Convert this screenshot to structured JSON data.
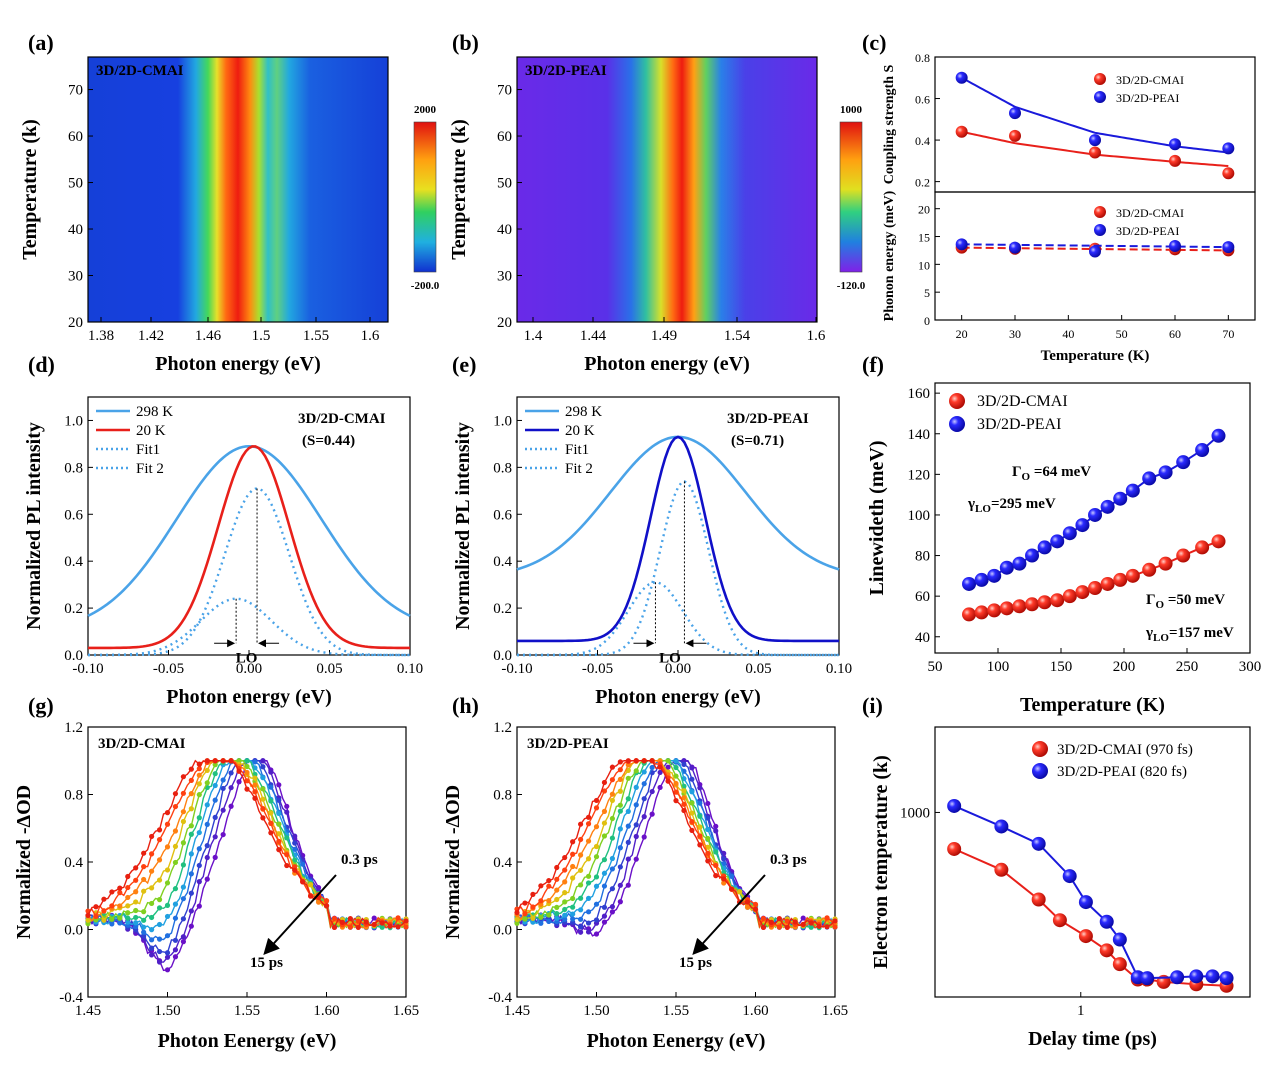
{
  "panel_labels": [
    "(a)",
    "(b)",
    "(c)",
    "(d)",
    "(e)",
    "(f)",
    "(g)",
    "(h)",
    "(i)"
  ],
  "colors": {
    "red": "#e8201a",
    "blue": "#1a1adb",
    "sky": "#4aa3e8",
    "darkblue": "#1010c8"
  },
  "chart_data": [
    {
      "id": "a",
      "type": "heatmap",
      "label_in_plot": "3D/2D-CMAI",
      "xlabel": "Photon energy (eV)",
      "ylabel": "Temperature (k)",
      "xticks": [
        "1.38",
        "1.42",
        "1.46",
        "1.5",
        "1.55",
        "1.6"
      ],
      "yticks": [
        "20",
        "30",
        "40",
        "50",
        "60",
        "70"
      ],
      "colorbar": {
        "max": "2000",
        "min": "-200.0"
      },
      "peak_energy_eV": 1.49
    },
    {
      "id": "b",
      "type": "heatmap",
      "label_in_plot": "3D/2D-PEAI",
      "xlabel": "Photon energy (eV)",
      "ylabel": "Temperature (k)",
      "xticks": [
        "1.4",
        "1.44",
        "1.49",
        "1.54",
        "1.6"
      ],
      "yticks": [
        "20",
        "30",
        "40",
        "50",
        "60",
        "70"
      ],
      "colorbar": {
        "max": "1000",
        "min": "-120.0"
      },
      "peak_energy_eV": 1.495
    },
    {
      "id": "c_top",
      "type": "scatter",
      "ylabel": "Coupling strength S",
      "yticks": [
        "0.2",
        "0.4",
        "0.6",
        "0.8"
      ],
      "ylim": [
        0.15,
        0.8
      ],
      "x": [
        20,
        30,
        45,
        60,
        70
      ],
      "series": [
        {
          "name": "3D/2D-CMAI",
          "values": [
            0.44,
            0.42,
            0.34,
            0.3,
            0.24
          ],
          "fit": [
            0.44,
            0.385,
            0.33,
            0.295,
            0.275
          ]
        },
        {
          "name": "3D/2D-PEAI",
          "values": [
            0.7,
            0.53,
            0.4,
            0.38,
            0.36
          ],
          "fit": [
            0.7,
            0.56,
            0.435,
            0.37,
            0.34
          ]
        }
      ]
    },
    {
      "id": "c_bottom",
      "type": "scatter",
      "ylabel": "Phonon energy (meV)",
      "xlabel": "Temperature (K)",
      "xticks": [
        "20",
        "30",
        "40",
        "50",
        "60",
        "70"
      ],
      "yticks": [
        "0",
        "5",
        "10",
        "15",
        "20"
      ],
      "ylim": [
        0,
        23
      ],
      "xlim": [
        15,
        75
      ],
      "x": [
        20,
        30,
        45,
        60,
        70
      ],
      "series": [
        {
          "name": "3D/2D-CMAI",
          "values": [
            13,
            12.8,
            12.8,
            12.7,
            12.5
          ]
        },
        {
          "name": "3D/2D-PEAI",
          "values": [
            13.6,
            13,
            12.3,
            13.3,
            13.1
          ]
        }
      ]
    },
    {
      "id": "d",
      "type": "line",
      "label_in_plot": "3D/2D-CMAI",
      "annotation": "(S=0.44)",
      "xlabel": "Photon energy (eV)",
      "ylabel": "Normalized PL intensity",
      "xticks": [
        "-0.10",
        "-0.05",
        "0.00",
        "0.05",
        "0.10"
      ],
      "yticks": [
        "0.0",
        "0.2",
        "0.4",
        "0.6",
        "0.8",
        "1.0"
      ],
      "xlim": [
        -0.1,
        0.1
      ],
      "ylim": [
        0,
        1.1
      ],
      "lo_label": "LO",
      "legend": [
        "298 K",
        "20 K",
        "Fit1",
        "Fit 2"
      ],
      "curves": {
        "k298": {
          "center": 0.0,
          "sigma": 0.045,
          "amp": 0.79,
          "base": 0.1
        },
        "k20": {
          "center": 0.003,
          "sigma": 0.022,
          "amp": 0.86,
          "base": 0.03
        },
        "fit1": {
          "center": 0.005,
          "sigma": 0.02,
          "amp": 0.71,
          "base": 0.0
        },
        "fit2": {
          "center": -0.008,
          "sigma": 0.022,
          "amp": 0.24,
          "base": 0.0
        }
      }
    },
    {
      "id": "e",
      "type": "line",
      "label_in_plot": "3D/2D-PEAI",
      "annotation": "(S=0.71)",
      "xlabel": "Photon energy (eV)",
      "ylabel": "Normalized PL intensity",
      "xticks": [
        "-0.10",
        "-0.05",
        "0.00",
        "0.05",
        "0.10"
      ],
      "yticks": [
        "0.0",
        "0.2",
        "0.4",
        "0.6",
        "0.8",
        "1.0"
      ],
      "xlim": [
        -0.1,
        0.1
      ],
      "ylim": [
        0,
        1.1
      ],
      "lo_label": "LO",
      "legend": [
        "298 K",
        "20 K",
        "Fit1",
        "Fit 2"
      ],
      "curves": {
        "k298": {
          "center": 0.0,
          "sigma": 0.042,
          "amp": 0.6,
          "base": 0.33
        },
        "k20": {
          "center": 0.0,
          "sigma": 0.017,
          "amp": 0.87,
          "base": 0.06
        },
        "fit1": {
          "center": 0.004,
          "sigma": 0.015,
          "amp": 0.74,
          "base": 0.0
        },
        "fit2": {
          "center": -0.014,
          "sigma": 0.017,
          "amp": 0.31,
          "base": 0.0
        }
      }
    },
    {
      "id": "f",
      "type": "scatter",
      "xlabel": "Temperature (K)",
      "ylabel": "Linewideth (meV)",
      "xticks": [
        "50",
        "100",
        "150",
        "200",
        "250",
        "300"
      ],
      "yticks": [
        "40",
        "60",
        "80",
        "100",
        "120",
        "140",
        "160"
      ],
      "xlim": [
        50,
        300
      ],
      "ylim": [
        32,
        165
      ],
      "annotations": [
        "Γ",
        "O",
        " =64 meV",
        "γ",
        "LO",
        "=295 meV",
        "Γ",
        "O",
        " =50 meV",
        "γ",
        "LO",
        "=157 meV"
      ],
      "x": [
        77,
        87,
        97,
        107,
        117,
        127,
        137,
        147,
        157,
        167,
        177,
        187,
        197,
        207,
        220,
        233,
        247,
        262,
        275
      ],
      "series": [
        {
          "name": "3D/2D-CMAI",
          "values": [
            51,
            52,
            53,
            54,
            55,
            56,
            57,
            58,
            60,
            62,
            64,
            66,
            68,
            70,
            73,
            76,
            80,
            84,
            87
          ]
        },
        {
          "name": "3D/2D-PEAI",
          "values": [
            66,
            68,
            70,
            74,
            76,
            80,
            84,
            87,
            91,
            95,
            100,
            104,
            108,
            112,
            118,
            121,
            126,
            132,
            139
          ]
        }
      ]
    },
    {
      "id": "g",
      "type": "line",
      "label_in_plot": "3D/2D-CMAI",
      "xlabel": "Photon Eenergy (eV)",
      "ylabel": "Normalized -ΔOD",
      "xticks": [
        "1.45",
        "1.50",
        "1.55",
        "1.60",
        "1.65"
      ],
      "yticks": [
        "-0.4",
        "0.0",
        "0.4",
        "0.8",
        "1.2"
      ],
      "xlim": [
        1.45,
        1.65
      ],
      "ylim": [
        -0.4,
        1.2
      ],
      "time_start": "0.3 ps",
      "time_end": "15 ps"
    },
    {
      "id": "h",
      "type": "line",
      "label_in_plot": "3D/2D-PEAI",
      "xlabel": "Photon Eenergy (eV)",
      "ylabel": "Normalized -ΔOD",
      "xticks": [
        "1.45",
        "1.50",
        "1.55",
        "1.60",
        "1.65"
      ],
      "yticks": [
        "-0.4",
        "0.0",
        "0.4",
        "0.8",
        "1.2"
      ],
      "xlim": [
        1.45,
        1.65
      ],
      "ylim": [
        -0.4,
        1.2
      ],
      "time_start": "0.3 ps",
      "time_end": "15 ps"
    },
    {
      "id": "i",
      "type": "scatter",
      "xscale": "log",
      "yscale": "log",
      "xlabel": "Delay time (ps)",
      "ylabel": "Electron temperature (k)",
      "xticks": [
        "1"
      ],
      "yticks": [
        "1000"
      ],
      "xlim": [
        0.25,
        5
      ],
      "ylim": [
        250,
        1900
      ],
      "series": [
        {
          "name": "3D/2D-CMAI  (970 fs)",
          "x": [
            0.3,
            0.47,
            0.67,
            0.82,
            1.05,
            1.28,
            1.45,
            1.72,
            1.88,
            2.2,
            3,
            4
          ],
          "values": [
            760,
            650,
            520,
            445,
            395,
            355,
            320,
            285,
            285,
            280,
            275,
            272
          ]
        },
        {
          "name": "3D/2D-PEAI   (820 fs)",
          "x": [
            0.3,
            0.47,
            0.67,
            0.9,
            1.05,
            1.28,
            1.45,
            1.72,
            1.88,
            2.5,
            3,
            3.5,
            4
          ],
          "values": [
            1050,
            900,
            790,
            620,
            510,
            440,
            385,
            290,
            288,
            290,
            292,
            292,
            288
          ]
        }
      ]
    }
  ]
}
